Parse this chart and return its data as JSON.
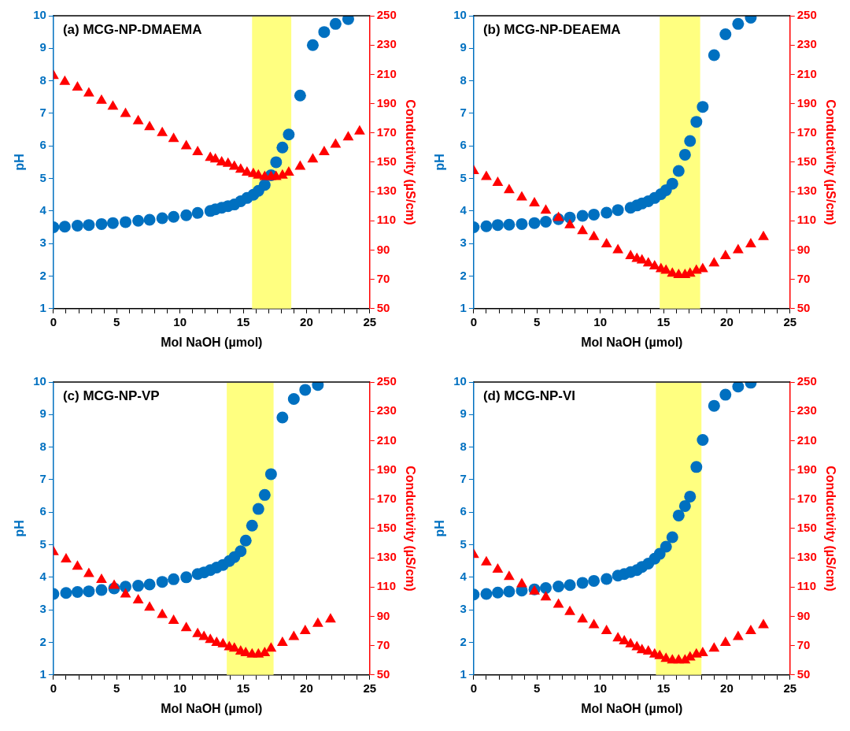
{
  "chart_data": [
    {
      "type": "scatter",
      "title": "(a) MCG-NP-DMAEMA",
      "xlabel": "Mol NaOH (µmol)",
      "ylabel": "pH",
      "y2label": "Conductivity (µS/cm)",
      "xlim": [
        0,
        25
      ],
      "xticks": [
        0,
        {
          "value": 1,
          "label": null
        },
        {
          "value": 2,
          "label": null
        },
        {
          "value": 3,
          "label": null
        },
        {
          "value": 4,
          "label": null
        },
        5,
        {
          "value": 6,
          "label": null
        },
        {
          "value": 7,
          "label": null
        },
        {
          "value": 8,
          "label": null
        },
        {
          "value": 9,
          "label": null
        },
        10,
        {
          "value": 11,
          "label": null
        },
        {
          "value": 12,
          "label": null
        },
        {
          "value": 13,
          "label": null
        },
        {
          "value": 14,
          "label": null
        },
        15,
        {
          "value": 16,
          "label": null
        },
        {
          "value": 17,
          "label": null
        },
        {
          "value": 18,
          "label": null
        },
        {
          "value": 19,
          "label": null
        },
        20,
        {
          "value": 21,
          "label": null
        },
        {
          "value": 22,
          "label": null
        },
        {
          "value": 23,
          "label": null
        },
        {
          "value": 24,
          "label": null
        },
        25
      ],
      "ylim": [
        1,
        10
      ],
      "yticks": [
        1,
        2,
        3,
        4,
        5,
        6,
        7,
        8,
        9,
        10
      ],
      "y2lim": [
        50,
        250
      ],
      "y2ticks": [
        50,
        70,
        90,
        110,
        130,
        150,
        170,
        190,
        210,
        230,
        250
      ],
      "grid": false,
      "legend": false,
      "bands": [
        {
          "axis": "x",
          "from": 15.7,
          "to": 18.8,
          "color": "#ffff80"
        }
      ],
      "series": [
        {
          "color": "#0070c0",
          "marker": "circle",
          "x": [
            0,
            0.9,
            1.9,
            2.8,
            3.8,
            4.7,
            5.7,
            6.7,
            7.6,
            8.6,
            9.5,
            10.5,
            11.4,
            12.4,
            12.8,
            13.3,
            13.8,
            14.3,
            14.8,
            15.3,
            15.8,
            16.2,
            16.7,
            17.2,
            17.6,
            18.1,
            18.6,
            19.5,
            20.5,
            21.4,
            22.3,
            23.3
          ],
          "values": [
            3.5,
            3.52,
            3.55,
            3.57,
            3.6,
            3.63,
            3.66,
            3.7,
            3.73,
            3.78,
            3.82,
            3.87,
            3.94,
            4.0,
            4.05,
            4.1,
            4.15,
            4.2,
            4.3,
            4.4,
            4.5,
            4.62,
            4.8,
            5.1,
            5.5,
            5.95,
            6.35,
            7.55,
            9.1,
            9.5,
            9.75,
            9.9
          ]
        },
        {
          "color": "#ff0000",
          "marker": "triangle",
          "axis": "y2",
          "x": [
            0,
            0.9,
            1.9,
            2.8,
            3.8,
            4.7,
            5.7,
            6.7,
            7.6,
            8.6,
            9.5,
            10.5,
            11.4,
            12.4,
            12.8,
            13.3,
            13.8,
            14.3,
            14.8,
            15.3,
            15.8,
            16.2,
            16.7,
            17.2,
            17.6,
            18.1,
            18.6,
            19.5,
            20.5,
            21.4,
            22.3,
            23.3,
            24.2
          ],
          "values": [
            209,
            205,
            201,
            197,
            192,
            188,
            183,
            178,
            174,
            170,
            166,
            161,
            157,
            153,
            152,
            150,
            149,
            147,
            145,
            143,
            142,
            141,
            140,
            140,
            140,
            141,
            143,
            147,
            152,
            157,
            162,
            167,
            171
          ]
        }
      ]
    },
    {
      "type": "scatter",
      "title": "(b) MCG-NP-DEAEMA",
      "xlabel": "Mol NaOH (µmol)",
      "ylabel": "pH",
      "y2label": "Conductivity (µS/cm)",
      "xlim": [
        0,
        25
      ],
      "xticks": [
        0,
        {
          "value": 1,
          "label": null
        },
        {
          "value": 2,
          "label": null
        },
        {
          "value": 3,
          "label": null
        },
        {
          "value": 4,
          "label": null
        },
        5,
        {
          "value": 6,
          "label": null
        },
        {
          "value": 7,
          "label": null
        },
        {
          "value": 8,
          "label": null
        },
        {
          "value": 9,
          "label": null
        },
        10,
        {
          "value": 11,
          "label": null
        },
        {
          "value": 12,
          "label": null
        },
        {
          "value": 13,
          "label": null
        },
        {
          "value": 14,
          "label": null
        },
        15,
        {
          "value": 16,
          "label": null
        },
        {
          "value": 17,
          "label": null
        },
        {
          "value": 18,
          "label": null
        },
        {
          "value": 19,
          "label": null
        },
        20,
        {
          "value": 21,
          "label": null
        },
        {
          "value": 22,
          "label": null
        },
        {
          "value": 23,
          "label": null
        },
        {
          "value": 24,
          "label": null
        },
        25
      ],
      "ylim": [
        1,
        10
      ],
      "yticks": [
        1,
        2,
        3,
        4,
        5,
        6,
        7,
        8,
        9,
        10
      ],
      "y2lim": [
        50,
        250
      ],
      "y2ticks": [
        50,
        70,
        90,
        110,
        130,
        150,
        170,
        190,
        210,
        230,
        250
      ],
      "grid": false,
      "legend": false,
      "bands": [
        {
          "axis": "x",
          "from": 14.7,
          "to": 17.9,
          "color": "#ffff80"
        }
      ],
      "series": [
        {
          "color": "#0070c0",
          "marker": "circle",
          "x": [
            0,
            1,
            1.9,
            2.8,
            3.8,
            4.8,
            5.7,
            6.7,
            7.6,
            8.6,
            9.5,
            10.5,
            11.4,
            12.4,
            12.9,
            13.3,
            13.8,
            14.3,
            14.8,
            15.2,
            15.7,
            16.2,
            16.7,
            17.1,
            17.6,
            18.1,
            19.0,
            19.9,
            20.9,
            21.9
          ],
          "values": [
            3.5,
            3.53,
            3.57,
            3.58,
            3.6,
            3.63,
            3.67,
            3.75,
            3.8,
            3.85,
            3.89,
            3.95,
            4.03,
            4.1,
            4.17,
            4.23,
            4.3,
            4.4,
            4.52,
            4.64,
            4.84,
            5.23,
            5.73,
            6.15,
            6.74,
            7.2,
            8.79,
            9.43,
            9.75,
            9.94
          ]
        },
        {
          "color": "#ff0000",
          "marker": "triangle",
          "axis": "y2",
          "x": [
            0,
            1,
            1.9,
            2.8,
            3.8,
            4.8,
            5.7,
            6.7,
            7.6,
            8.6,
            9.5,
            10.5,
            11.4,
            12.4,
            12.9,
            13.3,
            13.8,
            14.3,
            14.8,
            15.2,
            15.7,
            16.2,
            16.7,
            17.1,
            17.6,
            18.1,
            19.0,
            19.9,
            20.9,
            21.9,
            22.9
          ],
          "values": [
            144,
            140,
            136,
            131,
            126,
            122,
            117,
            112,
            107,
            103,
            99,
            94,
            90,
            86,
            84,
            83,
            81,
            79,
            77,
            76,
            74,
            73,
            73,
            74,
            76,
            77,
            81,
            86,
            90,
            94,
            99
          ]
        }
      ]
    },
    {
      "type": "scatter",
      "title": "(c) MCG-NP-VP",
      "xlabel": "Mol NaOH (µmol)",
      "ylabel": "pH",
      "y2label": "Conductivity (µS/cm)",
      "xlim": [
        0,
        25
      ],
      "xticks": [
        0,
        {
          "value": 1,
          "label": null
        },
        {
          "value": 2,
          "label": null
        },
        {
          "value": 3,
          "label": null
        },
        {
          "value": 4,
          "label": null
        },
        5,
        {
          "value": 6,
          "label": null
        },
        {
          "value": 7,
          "label": null
        },
        {
          "value": 8,
          "label": null
        },
        {
          "value": 9,
          "label": null
        },
        10,
        {
          "value": 11,
          "label": null
        },
        {
          "value": 12,
          "label": null
        },
        {
          "value": 13,
          "label": null
        },
        {
          "value": 14,
          "label": null
        },
        15,
        {
          "value": 16,
          "label": null
        },
        {
          "value": 17,
          "label": null
        },
        {
          "value": 18,
          "label": null
        },
        {
          "value": 19,
          "label": null
        },
        20,
        {
          "value": 21,
          "label": null
        },
        {
          "value": 22,
          "label": null
        },
        {
          "value": 23,
          "label": null
        },
        {
          "value": 24,
          "label": null
        },
        25
      ],
      "ylim": [
        1,
        10
      ],
      "yticks": [
        1,
        2,
        3,
        4,
        5,
        6,
        7,
        8,
        9,
        10
      ],
      "y2lim": [
        50,
        250
      ],
      "y2ticks": [
        50,
        70,
        90,
        110,
        130,
        150,
        170,
        190,
        210,
        230,
        250
      ],
      "grid": false,
      "legend": false,
      "bands": [
        {
          "axis": "x",
          "from": 13.7,
          "to": 17.4,
          "color": "#ffff80"
        }
      ],
      "series": [
        {
          "color": "#0070c0",
          "marker": "circle",
          "x": [
            0,
            1,
            1.9,
            2.8,
            3.8,
            4.8,
            5.7,
            6.7,
            7.6,
            8.6,
            9.5,
            10.5,
            11.4,
            11.9,
            12.4,
            12.9,
            13.4,
            13.9,
            14.3,
            14.8,
            15.2,
            15.7,
            16.2,
            16.7,
            17.2,
            18.1,
            19.0,
            19.9,
            20.9
          ],
          "values": [
            3.49,
            3.52,
            3.55,
            3.57,
            3.61,
            3.66,
            3.71,
            3.74,
            3.78,
            3.86,
            3.94,
            4.0,
            4.1,
            4.15,
            4.22,
            4.3,
            4.38,
            4.5,
            4.62,
            4.8,
            5.13,
            5.59,
            6.1,
            6.53,
            7.17,
            8.91,
            9.48,
            9.76,
            9.91
          ]
        },
        {
          "color": "#ff0000",
          "marker": "triangle",
          "axis": "y2",
          "x": [
            0,
            1,
            1.9,
            2.8,
            3.8,
            4.8,
            5.7,
            6.7,
            7.6,
            8.6,
            9.5,
            10.5,
            11.4,
            11.9,
            12.4,
            12.9,
            13.4,
            13.9,
            14.3,
            14.8,
            15.2,
            15.7,
            16.2,
            16.7,
            17.2,
            18.1,
            19.0,
            19.9,
            20.9,
            21.9
          ],
          "values": [
            134,
            129,
            124,
            119,
            115,
            111,
            105,
            101,
            96,
            91,
            87,
            82,
            78,
            76,
            74,
            72,
            71,
            69,
            68,
            66,
            65,
            64,
            64,
            65,
            68,
            72,
            76,
            80,
            85,
            88
          ]
        }
      ]
    },
    {
      "type": "scatter",
      "title": "(d) MCG-NP-VI",
      "xlabel": "Mol NaOH (µmol)",
      "ylabel": "pH",
      "y2label": "Conductivity (µS/cm)",
      "xlim": [
        0,
        25
      ],
      "xticks": [
        0,
        {
          "value": 1,
          "label": null
        },
        {
          "value": 2,
          "label": null
        },
        {
          "value": 3,
          "label": null
        },
        {
          "value": 4,
          "label": null
        },
        5,
        {
          "value": 6,
          "label": null
        },
        {
          "value": 7,
          "label": null
        },
        {
          "value": 8,
          "label": null
        },
        {
          "value": 9,
          "label": null
        },
        10,
        {
          "value": 11,
          "label": null
        },
        {
          "value": 12,
          "label": null
        },
        {
          "value": 13,
          "label": null
        },
        {
          "value": 14,
          "label": null
        },
        15,
        {
          "value": 16,
          "label": null
        },
        {
          "value": 17,
          "label": null
        },
        {
          "value": 18,
          "label": null
        },
        {
          "value": 19,
          "label": null
        },
        20,
        {
          "value": 21,
          "label": null
        },
        {
          "value": 22,
          "label": null
        },
        {
          "value": 23,
          "label": null
        },
        {
          "value": 24,
          "label": null
        },
        25
      ],
      "ylim": [
        1,
        10
      ],
      "yticks": [
        1,
        2,
        3,
        4,
        5,
        6,
        7,
        8,
        9,
        10
      ],
      "y2lim": [
        50,
        250
      ],
      "y2ticks": [
        50,
        70,
        90,
        110,
        130,
        150,
        170,
        190,
        210,
        230,
        250
      ],
      "grid": false,
      "legend": false,
      "bands": [
        {
          "axis": "x",
          "from": 14.4,
          "to": 18.0,
          "color": "#ffff80"
        }
      ],
      "series": [
        {
          "color": "#0070c0",
          "marker": "circle",
          "x": [
            0,
            1,
            1.9,
            2.8,
            3.8,
            4.8,
            5.7,
            6.7,
            7.6,
            8.6,
            9.5,
            10.5,
            11.4,
            11.9,
            12.4,
            12.9,
            13.3,
            13.8,
            14.3,
            14.7,
            15.2,
            15.7,
            16.2,
            16.7,
            17.1,
            17.6,
            18.1,
            19.0,
            19.9,
            20.9,
            21.9
          ],
          "values": [
            3.47,
            3.49,
            3.53,
            3.56,
            3.59,
            3.63,
            3.67,
            3.72,
            3.76,
            3.83,
            3.89,
            3.95,
            4.05,
            4.1,
            4.16,
            4.22,
            4.32,
            4.42,
            4.57,
            4.72,
            4.94,
            5.23,
            5.9,
            6.19,
            6.48,
            7.39,
            8.22,
            9.27,
            9.61,
            9.86,
            9.98
          ]
        },
        {
          "color": "#ff0000",
          "marker": "triangle",
          "axis": "y2",
          "x": [
            0,
            1,
            1.9,
            2.8,
            3.8,
            4.8,
            5.7,
            6.7,
            7.6,
            8.6,
            9.5,
            10.5,
            11.4,
            11.9,
            12.4,
            12.9,
            13.3,
            13.8,
            14.3,
            14.7,
            15.2,
            15.7,
            16.2,
            16.7,
            17.1,
            17.6,
            18.1,
            19.0,
            19.9,
            20.9,
            21.9,
            22.9
          ],
          "values": [
            132,
            127,
            122,
            117,
            112,
            107,
            103,
            98,
            93,
            88,
            84,
            80,
            75,
            73,
            71,
            69,
            67,
            66,
            64,
            63,
            61,
            60,
            60,
            60,
            62,
            64,
            65,
            68,
            72,
            76,
            80,
            84
          ]
        }
      ]
    }
  ]
}
